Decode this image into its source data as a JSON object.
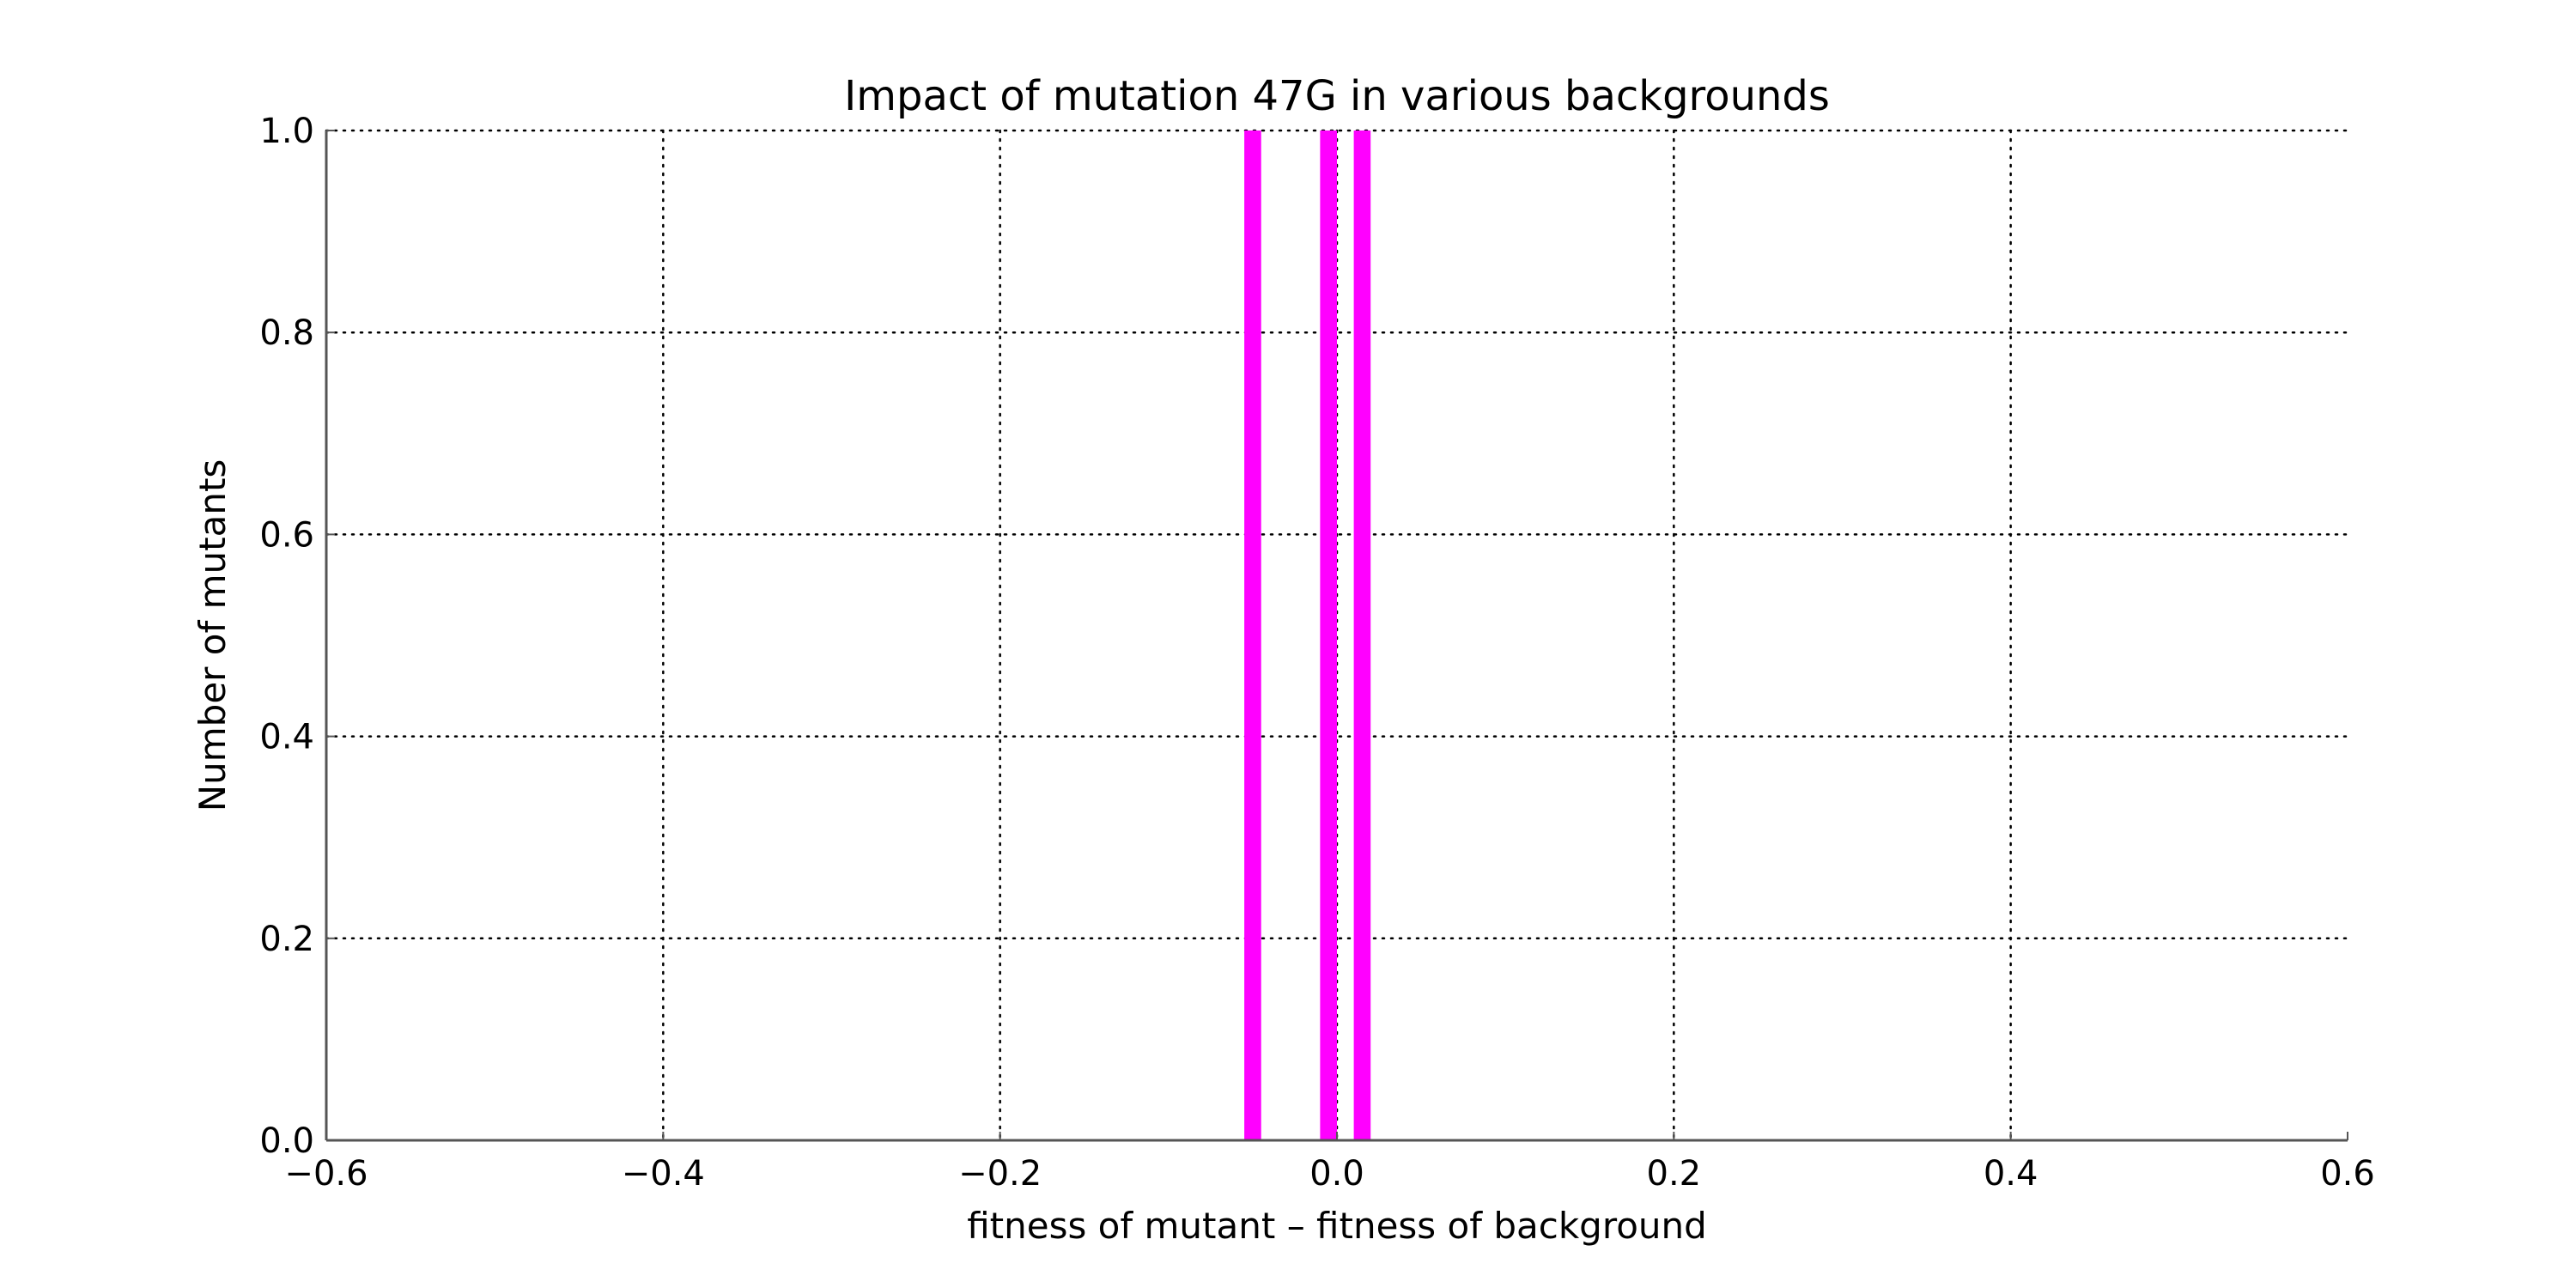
{
  "chart_data": {
    "type": "bar",
    "title": "Impact of mutation 47G in various backgrounds",
    "xlabel": "fitness of mutant  –  fitness of background",
    "ylabel": "Number of mutants",
    "xlim": [
      -0.6,
      0.6
    ],
    "ylim": [
      0.0,
      1.0
    ],
    "grid": true,
    "x_ticks": [
      "−0.6",
      "−0.4",
      "−0.2",
      "0.0",
      "0.2",
      "0.4",
      "0.6"
    ],
    "y_ticks": [
      "0.0",
      "0.2",
      "0.4",
      "0.6",
      "0.8",
      "1.0"
    ],
    "bar_color": "#ff00ff",
    "bars": [
      {
        "x0": -0.055,
        "x1": -0.045,
        "value": 1
      },
      {
        "x0": -0.01,
        "x1": 0.0,
        "value": 1
      },
      {
        "x0": 0.01,
        "x1": 0.02,
        "value": 1
      }
    ]
  }
}
